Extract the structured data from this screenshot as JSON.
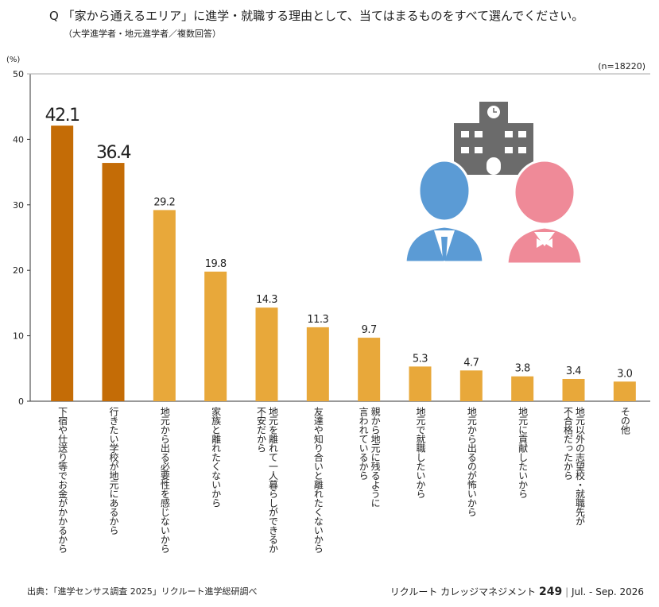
{
  "chart_data": {
    "type": "bar",
    "title": "Q 「家から通えるエリア」に進学・就職する理由として、当てはまるものをすべて選んでください。",
    "subtitle": "（大学進学者・地元進学者／複数回答）",
    "y_unit": "(%)",
    "sample": "(n=18220)",
    "categories": [
      "下宿や仕送り等でお金がかかるから",
      "行きたい学校が地元にあるから",
      "地元から出る必要性を感じないから",
      "家族と離れたくないから",
      "地元を離れて一人暮らしができるか\n不安だから",
      "友達や知り合いと離れたくないから",
      "親から地元に残るように\n言われているから",
      "地元で就職したいから",
      "地元から出るのが怖いから",
      "地元に貢献したいから",
      "地元以外の志望校・就職先が\n不合格だったから",
      "その他"
    ],
    "values": [
      42.1,
      36.4,
      29.2,
      19.8,
      14.3,
      11.3,
      9.7,
      5.3,
      4.7,
      3.8,
      3.4,
      3.0
    ],
    "value_labels": [
      "42.1",
      "36.4",
      "29.2",
      "19.8",
      "14.3",
      "11.3",
      "9.7",
      "5.3",
      "4.7",
      "3.8",
      "3.4",
      "3.0"
    ],
    "colors": [
      "#c46c06",
      "#c46c06",
      "#e8a83a",
      "#e8a83a",
      "#e8a83a",
      "#e8a83a",
      "#e8a83a",
      "#e8a83a",
      "#e8a83a",
      "#e8a83a",
      "#e8a83a",
      "#e8a83a"
    ],
    "ylim": [
      0,
      50
    ],
    "yticks": [
      0,
      10,
      20,
      30,
      40,
      50
    ],
    "source": "出典：「進学センサス調査 2025」リクルート進学総研調べ",
    "footer": {
      "publication": "リクルート カレッジマネジメント",
      "issue": "249",
      "separator": "|",
      "date": "Jul. - Sep. 2026"
    }
  }
}
